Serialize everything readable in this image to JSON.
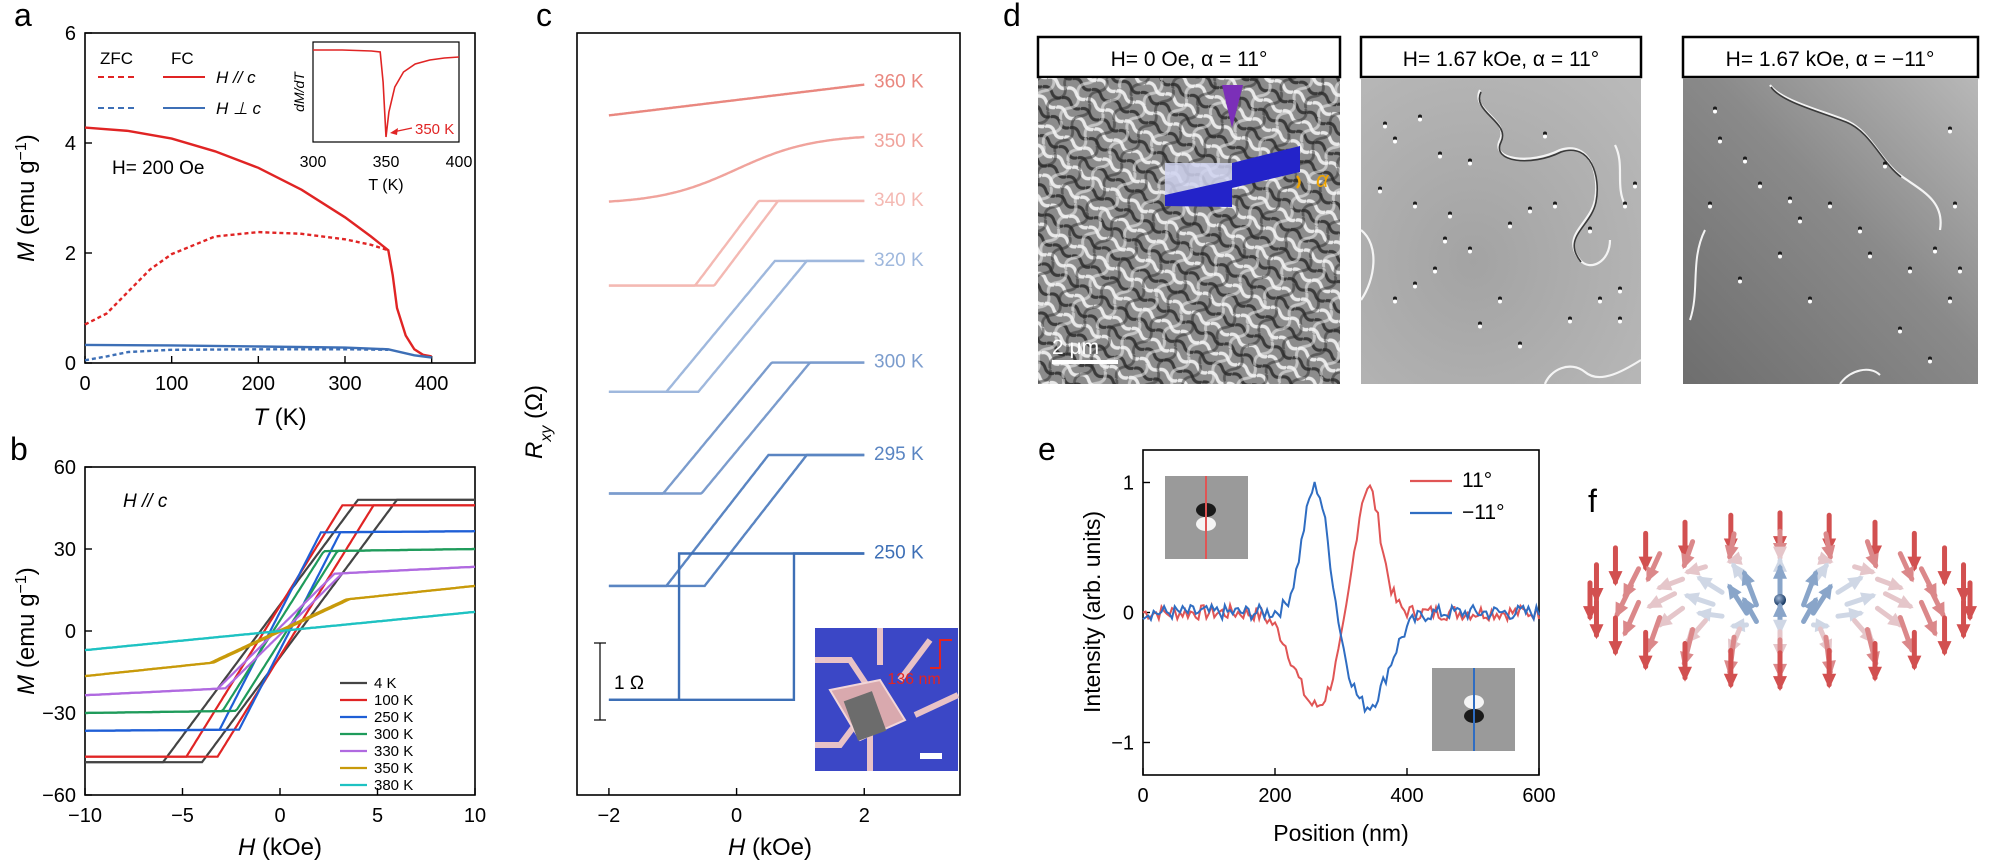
{
  "panels": {
    "a": {
      "letter": "a",
      "legend_zfc": "ZFC",
      "legend_fc": "FC",
      "legend_par": "H // c",
      "legend_perp": "H ⊥ c",
      "field_label": "H= 200 Oe",
      "inset_ylabel": "dM/dT",
      "inset_xlabel": "T (K)",
      "inset_annotation": "350 K",
      "inset_ticks": [
        "300",
        "350",
        "400"
      ]
    },
    "b": {
      "letter": "b",
      "label": "H // c"
    },
    "c": {
      "letter": "c",
      "ylabel": "Rxy (Ω)",
      "scalebar_label": "1 Ω",
      "inset_label": "136 nm"
    },
    "d": {
      "letter": "d",
      "scalebar_label": "2 μm",
      "angle_label": "α",
      "images": [
        {
          "title": "H= 0 Oe, α = 11°"
        },
        {
          "title": "H= 1.67 kOe, α = 11°"
        },
        {
          "title": "H= 1.67 kOe, α = −11°"
        }
      ]
    },
    "e": {
      "letter": "e"
    },
    "f": {
      "letter": "f"
    }
  },
  "colors": {
    "red": "#e02424",
    "blue": "#3d6fb6",
    "axis": "#000000"
  },
  "chart_data": [
    {
      "id": "a",
      "type": "line",
      "xlabel": "T (K)",
      "ylabel": "M (emu g−1)",
      "xlim": [
        0,
        450
      ],
      "ylim": [
        0,
        6
      ],
      "xticks": [
        0,
        100,
        200,
        300,
        400
      ],
      "yticks": [
        0,
        2,
        4,
        6
      ],
      "series": [
        {
          "name": "FC H // c",
          "color": "#e02424",
          "dash": false,
          "x": [
            0,
            50,
            100,
            150,
            200,
            250,
            300,
            330,
            350,
            355,
            360,
            370,
            380,
            390,
            400
          ],
          "y": [
            4.28,
            4.22,
            4.08,
            3.85,
            3.55,
            3.15,
            2.65,
            2.3,
            2.05,
            1.6,
            1.0,
            0.5,
            0.25,
            0.15,
            0.12
          ]
        },
        {
          "name": "ZFC H // c",
          "color": "#e02424",
          "dash": true,
          "x": [
            0,
            25,
            50,
            75,
            100,
            150,
            200,
            250,
            300,
            330,
            350
          ],
          "y": [
            0.7,
            0.9,
            1.3,
            1.7,
            1.98,
            2.3,
            2.38,
            2.35,
            2.25,
            2.15,
            2.05
          ]
        },
        {
          "name": "FC H ⊥ c",
          "color": "#3d6fb6",
          "dash": false,
          "x": [
            0,
            100,
            200,
            300,
            350,
            380,
            400
          ],
          "y": [
            0.33,
            0.32,
            0.3,
            0.28,
            0.25,
            0.14,
            0.1
          ]
        },
        {
          "name": "ZFC H ⊥ c",
          "color": "#3d6fb6",
          "dash": true,
          "x": [
            0,
            25,
            50,
            100,
            200,
            300,
            350
          ],
          "y": [
            0.05,
            0.12,
            0.2,
            0.24,
            0.25,
            0.25,
            0.24
          ]
        }
      ]
    },
    {
      "id": "a_inset",
      "type": "line",
      "xlabel": "T (K)",
      "ylabel": "dM/dT",
      "xlim": [
        300,
        400
      ],
      "xticks": [
        300,
        350,
        400
      ],
      "series": [
        {
          "name": "dM/dT",
          "color": "#e02424",
          "x": [
            300,
            320,
            340,
            346,
            348,
            350,
            352,
            356,
            362,
            370,
            380,
            390,
            400
          ],
          "y": [
            0.92,
            0.92,
            0.91,
            0.9,
            0.6,
            0.05,
            0.3,
            0.55,
            0.7,
            0.78,
            0.82,
            0.84,
            0.85
          ]
        }
      ]
    },
    {
      "id": "b",
      "type": "line",
      "xlabel": "H (kOe)",
      "ylabel": "M (emu g−1)",
      "xlim": [
        -10,
        10
      ],
      "ylim": [
        -60,
        60
      ],
      "xticks": [
        -10,
        -5,
        0,
        5,
        10
      ],
      "yticks": [
        -60,
        -30,
        0,
        30,
        60
      ],
      "loops": [
        {
          "name": "4 K",
          "color": "#444444",
          "ms": 48,
          "hc": 1.0,
          "hs": 5.0,
          "lin": 0
        },
        {
          "name": "100 K",
          "color": "#e02424",
          "ms": 46,
          "hc": 0.8,
          "hs": 4.0,
          "lin": 0
        },
        {
          "name": "250 K",
          "color": "#1f5fd6",
          "ms": 36,
          "hc": 0.5,
          "hs": 2.6,
          "lin": 0.05
        },
        {
          "name": "300 K",
          "color": "#1f9b5b",
          "ms": 29,
          "hc": 0.35,
          "hs": 2.6,
          "lin": 0.1
        },
        {
          "name": "330 K",
          "color": "#b06ae0",
          "ms": 20,
          "hc": 0.2,
          "hs": 3.0,
          "lin": 0.35
        },
        {
          "name": "350 K",
          "color": "#c89a0a",
          "ms": 9,
          "hc": 0.1,
          "hs": 3.5,
          "lin": 0.75
        },
        {
          "name": "380 K",
          "color": "#1ec2c2",
          "ms": 0,
          "hc": 0,
          "hs": 1,
          "lin": 0.7
        }
      ]
    },
    {
      "id": "c",
      "type": "line",
      "xlabel": "H (kOe)",
      "ylabel": "Rxy (Ω)",
      "xlim": [
        -2.5,
        3.5
      ],
      "xticks": [
        -2,
        0,
        2
      ],
      "loops": [
        {
          "name": "360 K",
          "color": "#e9877f",
          "offset": 0.0,
          "amp": 0.2,
          "hc": 0,
          "hsw": 0,
          "kind": "linear"
        },
        {
          "name": "350 K",
          "color": "#f0a39c",
          "offset": 0.75,
          "amp": 0.45,
          "hc": 0,
          "hsw": 0,
          "kind": "smooth"
        },
        {
          "name": "340 K",
          "color": "#f4b9b3",
          "offset": 1.55,
          "amp": 0.55,
          "hc": 0.15,
          "hsw": 0.5,
          "kind": "loop"
        },
        {
          "name": "320 K",
          "color": "#9fb8dd",
          "offset": 2.45,
          "amp": 0.85,
          "hc": 0.25,
          "hsw": 0.85,
          "kind": "loop"
        },
        {
          "name": "300 K",
          "color": "#7b9ccd",
          "offset": 3.55,
          "amp": 0.85,
          "hc": 0.3,
          "hsw": 0.85,
          "kind": "loop"
        },
        {
          "name": "295 K",
          "color": "#5a85c2",
          "offset": 4.55,
          "amp": 0.85,
          "hc": 0.3,
          "hsw": 0.8,
          "kind": "loop"
        },
        {
          "name": "250 K",
          "color": "#3d6fb6",
          "offset": 5.7,
          "amp": 0.95,
          "hc": 0.9,
          "hsw": 0.9,
          "kind": "square"
        }
      ]
    },
    {
      "id": "e",
      "type": "line",
      "xlabel": "Position (nm)",
      "ylabel": "Intensity (arb. units)",
      "xlim": [
        0,
        600
      ],
      "ylim": [
        -1.25,
        1.25
      ],
      "xticks": [
        0,
        200,
        400,
        600
      ],
      "yticks": [
        -1,
        0,
        1
      ],
      "series": [
        {
          "name": "11°",
          "color": "#e05555"
        },
        {
          "name": "−11°",
          "color": "#2f6dc2"
        }
      ]
    }
  ]
}
